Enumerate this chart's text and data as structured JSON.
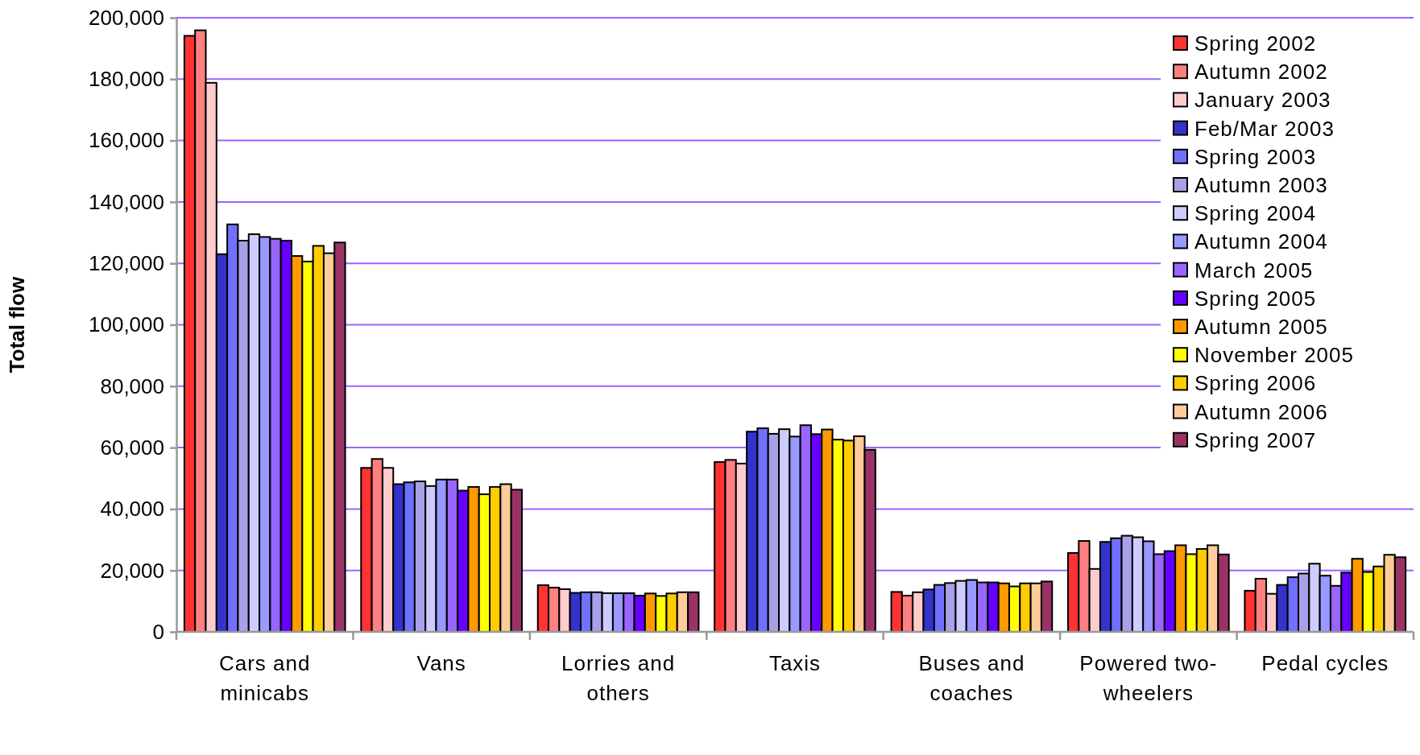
{
  "chart_data": {
    "type": "bar",
    "ylabel": "Total flow",
    "categories": [
      "Cars and minicabs",
      "Vans",
      "Lorries and others",
      "Taxis",
      "Buses and coaches",
      "Powered two-wheelers",
      "Pedal cycles"
    ],
    "series": [
      {
        "name": "Spring 2002",
        "color": "#ff3333",
        "values": [
          194100,
          53400,
          15200,
          55300,
          13000,
          25700,
          13400
        ]
      },
      {
        "name": "Autumn 2002",
        "color": "#ff8080",
        "values": [
          195900,
          56300,
          14400,
          56000,
          11800,
          29600,
          17300
        ]
      },
      {
        "name": "January 2003",
        "color": "#ffcccc",
        "values": [
          178800,
          53400,
          13900,
          54800,
          12900,
          20500,
          12400
        ]
      },
      {
        "name": "Feb/Mar 2003",
        "color": "#3333cc",
        "values": [
          123000,
          48100,
          12700,
          65200,
          13800,
          29300,
          15300
        ]
      },
      {
        "name": "Spring 2003",
        "color": "#7070ff",
        "values": [
          132700,
          48700,
          12900,
          66300,
          15300,
          30500,
          17800
        ]
      },
      {
        "name": "Autumn 2003",
        "color": "#aaa0e8",
        "values": [
          127400,
          49000,
          12900,
          64500,
          15900,
          31300,
          19000
        ]
      },
      {
        "name": "Spring 2004",
        "color": "#ccccff",
        "values": [
          129500,
          47500,
          12600,
          66000,
          16600,
          30800,
          22200
        ]
      },
      {
        "name": "Autumn 2004",
        "color": "#9999ff",
        "values": [
          128600,
          49600,
          12600,
          63600,
          16900,
          29500,
          18300
        ]
      },
      {
        "name": "March 2005",
        "color": "#9966ff",
        "values": [
          128000,
          49600,
          12600,
          67300,
          16100,
          25300,
          15000
        ]
      },
      {
        "name": "Spring 2005",
        "color": "#6600ff",
        "values": [
          127400,
          46000,
          11800,
          64400,
          16100,
          26300,
          19300
        ]
      },
      {
        "name": "Autumn 2005",
        "color": "#ff9900",
        "values": [
          122400,
          47200,
          12500,
          65900,
          15800,
          28200,
          23800
        ]
      },
      {
        "name": "November 2005",
        "color": "#ffff00",
        "values": [
          120600,
          44800,
          11700,
          62600,
          14800,
          25300,
          19500
        ]
      },
      {
        "name": "Spring 2006",
        "color": "#ffcc00",
        "values": [
          125700,
          47200,
          12500,
          62300,
          15800,
          27000,
          21300
        ]
      },
      {
        "name": "Autumn 2006",
        "color": "#ffcc99",
        "values": [
          123300,
          48100,
          12900,
          63700,
          15800,
          28200,
          25100
        ]
      },
      {
        "name": "Spring 2007",
        "color": "#993366",
        "values": [
          126800,
          46300,
          12900,
          59300,
          16400,
          25200,
          24300
        ]
      }
    ],
    "ylim": [
      0,
      200000
    ],
    "yticks": [
      {
        "value": 0,
        "label": "0"
      },
      {
        "value": 20000,
        "label": "20,000"
      },
      {
        "value": 40000,
        "label": "40,000"
      },
      {
        "value": 60000,
        "label": "60,000"
      },
      {
        "value": 80000,
        "label": "80,000"
      },
      {
        "value": 100000,
        "label": "100,000"
      },
      {
        "value": 120000,
        "label": "120,000"
      },
      {
        "value": 140000,
        "label": "140,000"
      },
      {
        "value": 160000,
        "label": "160,000"
      },
      {
        "value": 180000,
        "label": "180,000"
      },
      {
        "value": 200000,
        "label": "200,000"
      }
    ],
    "grid": "y",
    "legend": "top right"
  }
}
